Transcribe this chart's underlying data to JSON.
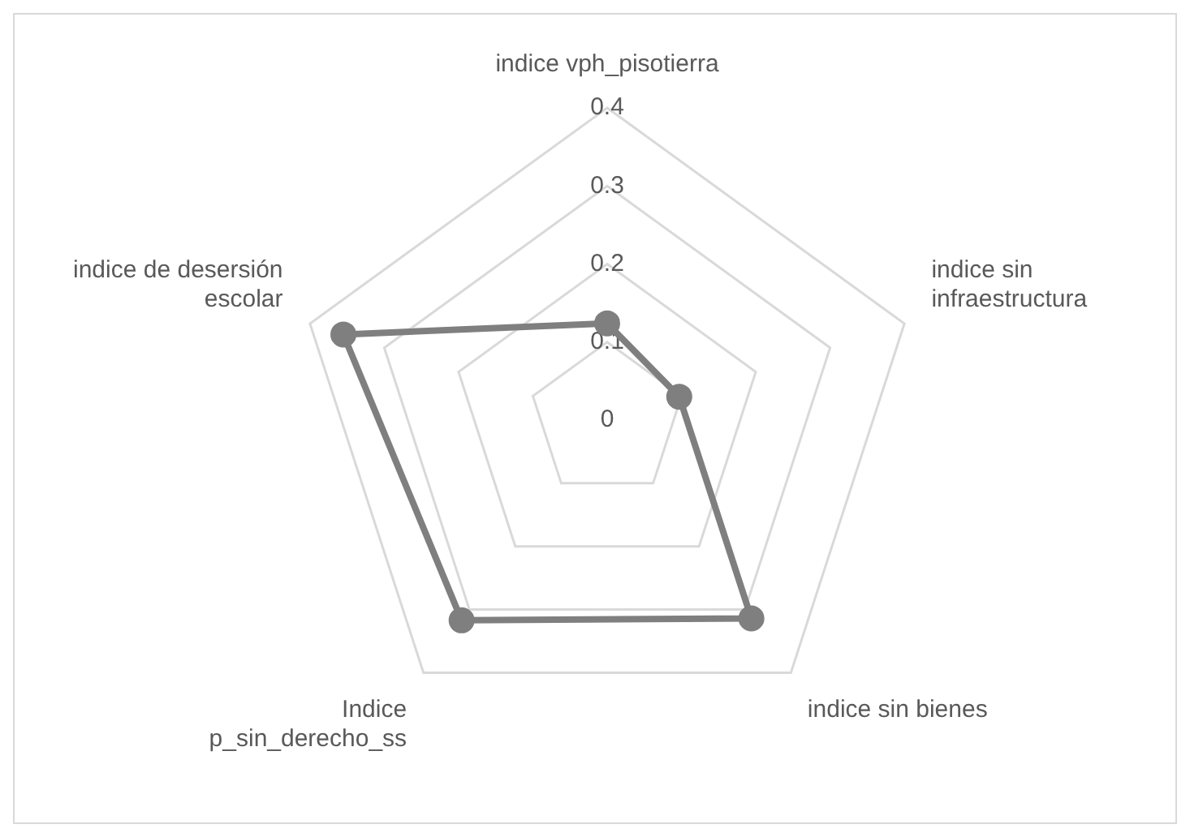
{
  "chart_data": {
    "type": "radar",
    "categories": [
      "indice vph_pisotierra",
      "indice sin infraestructura",
      "indice sin bienes",
      "Indice p_sin_derecho_ss",
      "indice de desersión escolar"
    ],
    "series": [
      {
        "color": "#7f7f7f",
        "values": [
          0.124,
          0.097,
          0.314,
          0.317,
          0.355
        ]
      }
    ],
    "ylim": [
      0,
      0.4
    ],
    "yticks": [
      0,
      0.1,
      0.2,
      0.3,
      0.4
    ],
    "grid": true,
    "marker": "circle",
    "line_style": "solid"
  }
}
